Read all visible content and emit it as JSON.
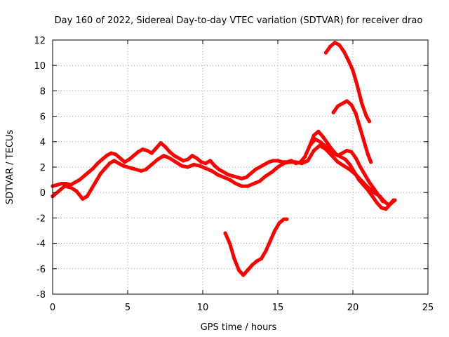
{
  "chart_data": {
    "type": "scatter",
    "title": "Day 160 of 2022, Sidereal Day-to-day VTEC variation (SDTVAR) for receiver drao",
    "xlabel": "GPS time / hours",
    "ylabel": "SDTVAR / TECUs",
    "xlim": [
      0,
      25
    ],
    "ylim": [
      -8,
      12
    ],
    "xticks": [
      0,
      5,
      10,
      15,
      20,
      25
    ],
    "yticks": [
      -8,
      -6,
      -4,
      -2,
      0,
      2,
      4,
      6,
      8,
      10,
      12
    ],
    "grid": true,
    "series_color": "#ff0000",
    "series": [
      {
        "name": "trace-main-upper",
        "x": [
          0.0,
          0.3,
          0.6,
          0.9,
          1.2,
          1.5,
          1.8,
          2.1,
          2.4,
          2.7,
          3.0,
          3.3,
          3.6,
          3.9,
          4.2,
          4.5,
          4.8,
          5.1,
          5.4,
          5.7,
          6.0,
          6.3,
          6.6,
          6.9,
          7.2,
          7.5,
          7.8,
          8.1,
          8.4,
          8.7,
          9.0,
          9.3,
          9.6,
          9.9,
          10.2,
          10.5,
          10.8,
          11.1,
          11.4,
          11.7,
          12.0,
          12.3,
          12.6,
          12.9,
          13.2,
          13.5,
          13.8,
          14.1,
          14.4,
          14.7,
          15.0,
          15.3,
          15.6,
          15.9,
          16.2,
          16.5,
          16.8,
          17.1,
          17.4,
          17.7,
          18.0,
          18.3,
          18.6,
          18.9,
          19.2,
          19.5,
          19.8,
          20.1,
          20.4,
          20.7,
          21.0,
          21.3,
          21.6,
          21.9,
          22.2,
          22.5,
          22.8
        ],
        "y": [
          0.5,
          0.6,
          0.7,
          0.7,
          0.6,
          0.8,
          1.0,
          1.3,
          1.6,
          1.9,
          2.3,
          2.6,
          2.9,
          3.1,
          3.0,
          2.7,
          2.4,
          2.6,
          2.9,
          3.2,
          3.4,
          3.3,
          3.1,
          3.5,
          3.9,
          3.6,
          3.2,
          2.9,
          2.7,
          2.5,
          2.6,
          2.9,
          2.7,
          2.4,
          2.3,
          2.5,
          2.1,
          1.8,
          1.6,
          1.4,
          1.3,
          1.2,
          1.1,
          1.2,
          1.5,
          1.8,
          2.0,
          2.2,
          2.4,
          2.5,
          2.5,
          2.4,
          2.4,
          2.5,
          2.3,
          2.4,
          2.8,
          3.6,
          4.5,
          4.8,
          4.4,
          3.9,
          3.4,
          3.0,
          2.8,
          2.6,
          2.2,
          1.6,
          1.0,
          0.6,
          0.2,
          -0.3,
          -0.8,
          -1.2,
          -1.3,
          -0.9,
          -0.6
        ]
      },
      {
        "name": "trace-main-lower",
        "x": [
          0.0,
          0.4,
          0.8,
          1.2,
          1.6,
          2.0,
          2.3,
          2.6,
          2.9,
          3.2,
          3.5,
          3.8,
          4.1,
          4.4,
          4.7,
          5.0,
          5.3,
          5.6,
          5.9,
          6.2,
          6.6,
          7.0,
          7.4,
          7.8,
          8.2,
          8.6,
          9.0,
          9.4,
          9.8,
          10.2,
          10.6,
          11.0,
          11.4,
          11.8,
          12.2,
          12.6,
          13.0,
          13.4,
          13.8,
          14.2,
          14.6,
          15.0,
          15.4,
          15.8,
          16.2,
          16.6,
          17.0,
          17.4,
          17.8,
          18.2,
          18.6,
          19.0,
          19.4,
          19.8,
          20.2,
          20.6,
          21.0,
          21.4,
          21.8,
          22.1,
          22.4,
          22.7
        ],
        "y": [
          -0.3,
          0.1,
          0.5,
          0.4,
          0.1,
          -0.5,
          -0.3,
          0.3,
          0.9,
          1.5,
          1.9,
          2.3,
          2.5,
          2.3,
          2.1,
          2.0,
          1.9,
          1.8,
          1.7,
          1.8,
          2.2,
          2.6,
          2.9,
          2.7,
          2.4,
          2.1,
          2.0,
          2.2,
          2.1,
          1.9,
          1.7,
          1.4,
          1.2,
          1.0,
          0.7,
          0.5,
          0.5,
          0.7,
          0.9,
          1.3,
          1.6,
          2.0,
          2.3,
          2.4,
          2.4,
          2.3,
          2.5,
          3.3,
          3.7,
          3.4,
          2.9,
          2.4,
          2.1,
          1.8,
          1.4,
          0.9,
          0.4,
          0.0,
          -0.3,
          -0.7,
          -1.0,
          -0.6
        ]
      },
      {
        "name": "trace-overlap",
        "x": [
          17.2,
          17.5,
          17.8,
          18.1,
          18.4,
          18.7,
          19.0,
          19.3,
          19.6,
          19.9,
          20.2,
          20.5,
          20.8,
          21.1,
          21.4,
          21.7,
          22.0
        ],
        "y": [
          3.8,
          4.2,
          4.0,
          3.7,
          3.4,
          3.1,
          2.9,
          3.1,
          3.3,
          3.2,
          2.7,
          2.0,
          1.4,
          0.8,
          0.3,
          -0.2,
          -0.7
        ]
      },
      {
        "name": "trace-dip",
        "x": [
          11.5,
          11.8,
          12.1,
          12.4,
          12.7,
          13.0,
          13.3,
          13.6,
          13.9,
          14.2,
          14.5,
          14.8,
          15.1,
          15.4,
          15.6
        ],
        "y": [
          -3.2,
          -4.0,
          -5.2,
          -6.1,
          -6.5,
          -6.1,
          -5.7,
          -5.4,
          -5.2,
          -4.6,
          -3.8,
          -3.0,
          -2.4,
          -2.1,
          -2.1
        ]
      },
      {
        "name": "trace-high-10",
        "x": [
          18.2,
          18.5,
          18.8,
          19.1,
          19.4,
          19.7,
          20.0,
          20.3,
          20.6,
          20.9,
          21.1
        ],
        "y": [
          11.0,
          11.5,
          11.8,
          11.6,
          11.1,
          10.4,
          9.6,
          8.4,
          7.0,
          6.0,
          5.6
        ]
      },
      {
        "name": "trace-high-7",
        "x": [
          18.7,
          19.0,
          19.3,
          19.6,
          19.9,
          20.2,
          20.5,
          20.8,
          21.0,
          21.2
        ],
        "y": [
          6.3,
          6.8,
          7.0,
          7.2,
          6.9,
          6.2,
          5.0,
          3.8,
          3.0,
          2.4
        ]
      }
    ]
  }
}
